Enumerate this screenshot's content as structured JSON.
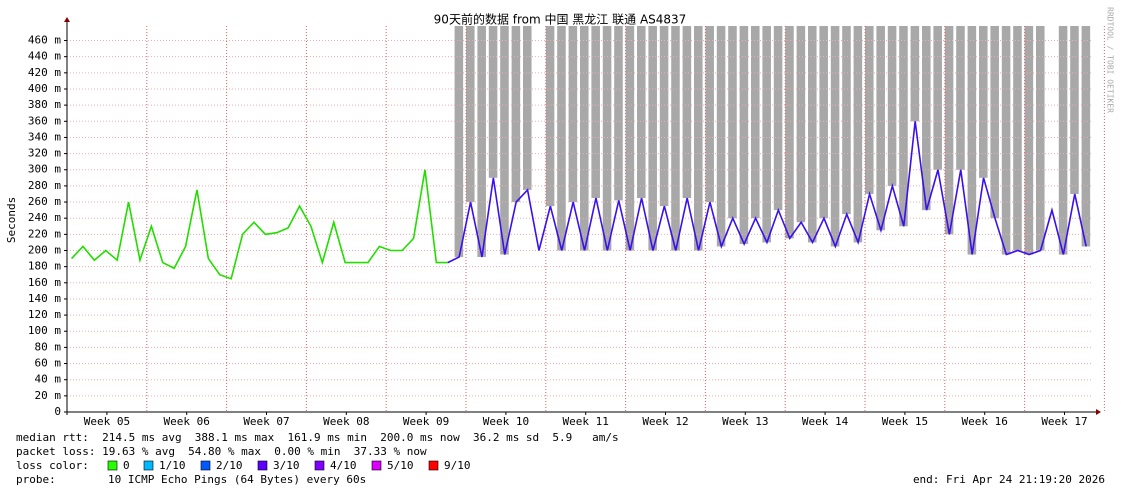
{
  "chart_data": {
    "type": "line",
    "title": "90天前的数据 from  中国 黑龙江 联通 AS4837",
    "y_label": "Seconds",
    "side_text": "RRDTOOL / TOBI OETIKER",
    "xlim": [
      0,
      90
    ],
    "xticks": [
      {
        "value": 3.5,
        "label": "Week 05"
      },
      {
        "value": 10.5,
        "label": "Week 06"
      },
      {
        "value": 17.5,
        "label": "Week 07"
      },
      {
        "value": 24.5,
        "label": "Week 08"
      },
      {
        "value": 31.5,
        "label": "Week 09"
      },
      {
        "value": 38.5,
        "label": "Week 10"
      },
      {
        "value": 45.5,
        "label": "Week 11"
      },
      {
        "value": 52.5,
        "label": "Week 12"
      },
      {
        "value": 59.5,
        "label": "Week 13"
      },
      {
        "value": 66.5,
        "label": "Week 14"
      },
      {
        "value": 73.5,
        "label": "Week 15"
      },
      {
        "value": 80.5,
        "label": "Week 16"
      },
      {
        "value": 87.5,
        "label": "Week 17"
      }
    ],
    "ylim": [
      0,
      478
    ],
    "yticks": [
      0,
      {
        "value": 20,
        "label": "20 m"
      },
      {
        "value": 40,
        "label": "40 m"
      },
      {
        "value": 60,
        "label": "60 m"
      },
      {
        "value": 80,
        "label": "80 m"
      },
      {
        "value": 100,
        "label": "100 m"
      },
      {
        "value": 120,
        "label": "120 m"
      },
      {
        "value": 140,
        "label": "140 m"
      },
      {
        "value": 160,
        "label": "160 m"
      },
      {
        "value": 180,
        "label": "180 m"
      },
      {
        "value": 200,
        "label": "200 m"
      },
      {
        "value": 220,
        "label": "220 m"
      },
      {
        "value": 240,
        "label": "240 m"
      },
      {
        "value": 260,
        "label": "260 m"
      },
      {
        "value": 280,
        "label": "280 m"
      },
      {
        "value": 300,
        "label": "300 m"
      },
      {
        "value": 320,
        "label": "320 m"
      },
      {
        "value": 340,
        "label": "340 m"
      },
      {
        "value": 360,
        "label": "360 m"
      },
      {
        "value": 380,
        "label": "380 m"
      },
      {
        "value": 400,
        "label": "400 m"
      },
      {
        "value": 420,
        "label": "420 m"
      },
      {
        "value": 440,
        "label": "440 m"
      },
      {
        "value": 460,
        "label": "460 m"
      }
    ],
    "grid": true,
    "smoke_color": "#a8a8a8",
    "series": [
      {
        "color": "#22dd00",
        "values": [
          190,
          205,
          188,
          200,
          188,
          260,
          188,
          230,
          185,
          178,
          205,
          275,
          190,
          170,
          165,
          220,
          235,
          220,
          222,
          228,
          255,
          230,
          185,
          235,
          185,
          185,
          185,
          205,
          200,
          200,
          215,
          300,
          185,
          185,
          null,
          null,
          null,
          null,
          null,
          null,
          null,
          null,
          null,
          null,
          null,
          null,
          null,
          null,
          null,
          null,
          null,
          null,
          null,
          null,
          null,
          null,
          null,
          null,
          null,
          null,
          null,
          null,
          null,
          null,
          null,
          null,
          null,
          null,
          null,
          null,
          null,
          null,
          null,
          null,
          null,
          null,
          null,
          null,
          null,
          null,
          null,
          null,
          null,
          null,
          null,
          null,
          null,
          null,
          null,
          null
        ]
      },
      {
        "color": "#3a10ee",
        "values": [
          null,
          null,
          null,
          null,
          null,
          null,
          null,
          null,
          null,
          null,
          null,
          null,
          null,
          null,
          null,
          null,
          null,
          null,
          null,
          null,
          null,
          null,
          null,
          null,
          null,
          null,
          null,
          null,
          null,
          null,
          null,
          null,
          null,
          185,
          192,
          260,
          192,
          290,
          195,
          260,
          275,
          200,
          255,
          200,
          260,
          200,
          265,
          200,
          262,
          200,
          265,
          200,
          255,
          200,
          265,
          200,
          260,
          205,
          240,
          208,
          240,
          210,
          250,
          215,
          235,
          210,
          240,
          205,
          245,
          210,
          270,
          225,
          280,
          230,
          360,
          250,
          300,
          220,
          300,
          195,
          290,
          240,
          195,
          200,
          195,
          200,
          250,
          195,
          270,
          205
        ]
      }
    ],
    "smoke_max": [
      null,
      null,
      null,
      null,
      null,
      null,
      null,
      null,
      null,
      null,
      null,
      null,
      null,
      null,
      null,
      null,
      null,
      null,
      null,
      null,
      null,
      null,
      null,
      null,
      null,
      null,
      null,
      null,
      null,
      null,
      null,
      null,
      null,
      null,
      478,
      478,
      478,
      478,
      478,
      478,
      478,
      null,
      478,
      478,
      478,
      478,
      478,
      478,
      478,
      478,
      478,
      478,
      478,
      478,
      478,
      478,
      478,
      478,
      478,
      478,
      478,
      478,
      478,
      478,
      478,
      478,
      478,
      478,
      478,
      478,
      478,
      478,
      478,
      478,
      478,
      478,
      478,
      478,
      478,
      478,
      478,
      478,
      478,
      478,
      478,
      478,
      null,
      478,
      478,
      478
    ],
    "stats": [
      "median rtt:  214.5 ms avg  388.1 ms max  161.9 ms min  200.0 ms now  36.2 ms sd  5.9   am/s",
      "packet loss: 19.63 % avg  54.80 % max  0.00 % min  37.33 % now"
    ],
    "loss_label": "loss color:",
    "loss_colors": [
      {
        "label": "0",
        "color": "#26ff00"
      },
      {
        "label": "1/10",
        "color": "#00b8ff"
      },
      {
        "label": "2/10",
        "color": "#0059ff"
      },
      {
        "label": "3/10",
        "color": "#5e00ff"
      },
      {
        "label": "4/10",
        "color": "#7e00ff"
      },
      {
        "label": "5/10",
        "color": "#dd00ff"
      },
      {
        "label": "9/10",
        "color": "#ff0000"
      }
    ],
    "probe_label": "probe:",
    "probe": "10 ICMP Echo Pings (64 Bytes) every 60s",
    "end": "end: Fri Apr 24 21:19:20 2026"
  }
}
